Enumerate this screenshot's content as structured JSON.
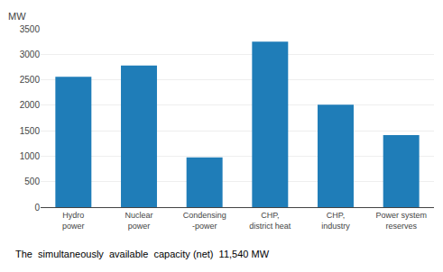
{
  "chart_data": {
    "type": "bar",
    "categories": [
      "Hydro\npower",
      "Nuclear\npower",
      "Condensing\n-power",
      "CHP,\ndistrict heat",
      "CHP,\nindustry",
      "Power system\nreserves"
    ],
    "values": [
      2560,
      2780,
      975,
      3250,
      2010,
      1415
    ],
    "color": "#1f7db8",
    "ylabel": "MW",
    "caption": "The  simultaneously  available  capacity (net)  11,540 MW",
    "ylim": [
      0,
      3500
    ],
    "yticks": [
      0,
      500,
      1000,
      1500,
      2000,
      2500,
      3000,
      3500
    ],
    "grid": true
  }
}
